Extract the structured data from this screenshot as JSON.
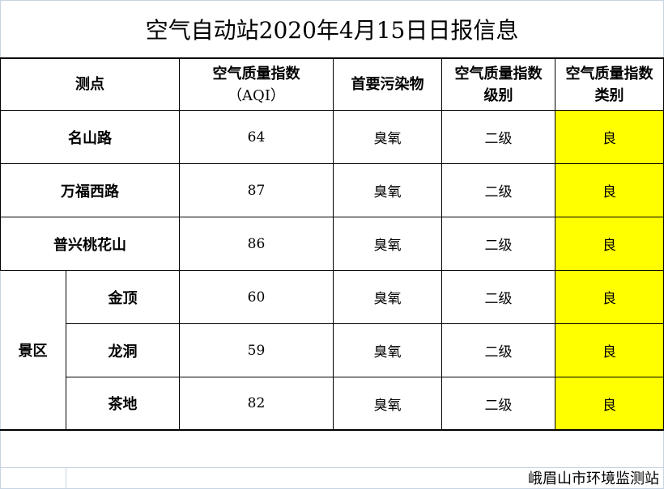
{
  "title": "空气自动站2020年4月15日日报信息",
  "headers": {
    "station": "测点",
    "aqi_line1": "空气质量指数",
    "aqi_line2": "（AQI）",
    "pollutant": "首要污染物",
    "level_line1": "空气质量指数",
    "level_line2": "级别",
    "category_line1": "空气质量指数",
    "category_line2": "类别"
  },
  "group_label": "景区",
  "rows": [
    {
      "station": "名山路",
      "aqi": "64",
      "pollutant": "臭氧",
      "level": "二级",
      "category": "良"
    },
    {
      "station": "万福西路",
      "aqi": "87",
      "pollutant": "臭氧",
      "level": "二级",
      "category": "良"
    },
    {
      "station": "普兴桃花山",
      "aqi": "86",
      "pollutant": "臭氧",
      "level": "二级",
      "category": "良"
    },
    {
      "station": "金顶",
      "aqi": "60",
      "pollutant": "臭氧",
      "level": "二级",
      "category": "良"
    },
    {
      "station": "龙洞",
      "aqi": "59",
      "pollutant": "臭氧",
      "level": "二级",
      "category": "良"
    },
    {
      "station": "茶地",
      "aqi": "82",
      "pollutant": "臭氧",
      "level": "二级",
      "category": "良"
    }
  ],
  "footer": "峨眉山市环境监测站",
  "colors": {
    "category_highlight": "#ffff00",
    "gridline": "#c8d4e4"
  }
}
